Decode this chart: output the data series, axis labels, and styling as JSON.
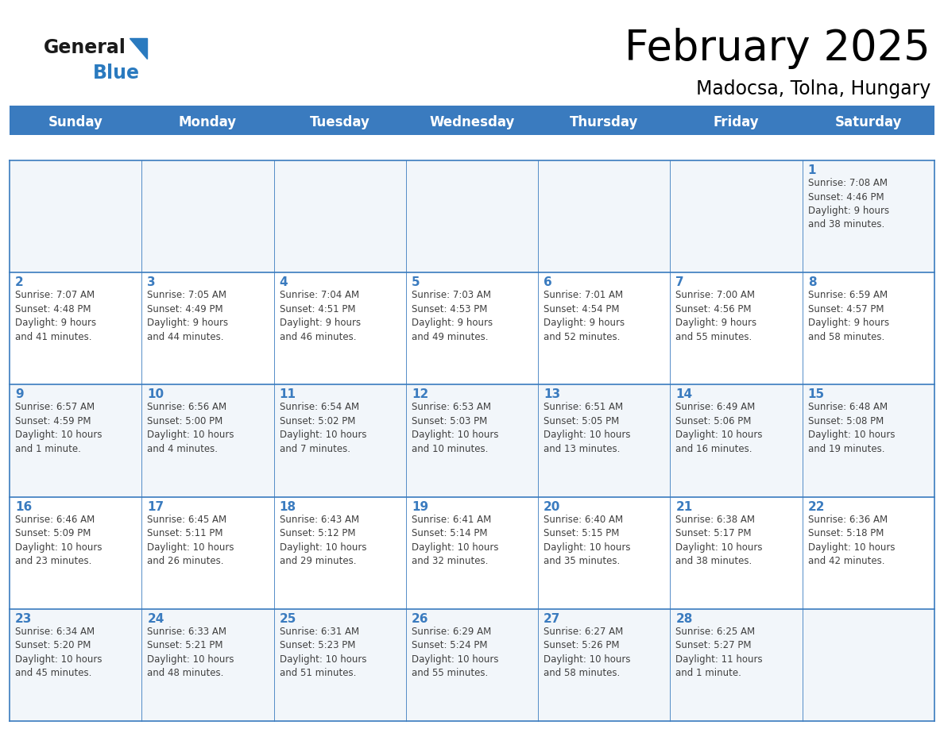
{
  "title": "February 2025",
  "subtitle": "Madocsa, Tolna, Hungary",
  "days_of_week": [
    "Sunday",
    "Monday",
    "Tuesday",
    "Wednesday",
    "Thursday",
    "Friday",
    "Saturday"
  ],
  "header_bg": "#3a7bbf",
  "header_text": "#ffffff",
  "line_color": "#3a7bbf",
  "day_number_color": "#3a7bbf",
  "text_color": "#404040",
  "logo_general_color": "#1a1a1a",
  "logo_blue_color": "#2a7abf",
  "bg_odd": "#f2f6fa",
  "bg_even": "#ffffff",
  "calendar": [
    [
      null,
      null,
      null,
      null,
      null,
      null,
      1
    ],
    [
      2,
      3,
      4,
      5,
      6,
      7,
      8
    ],
    [
      9,
      10,
      11,
      12,
      13,
      14,
      15
    ],
    [
      16,
      17,
      18,
      19,
      20,
      21,
      22
    ],
    [
      23,
      24,
      25,
      26,
      27,
      28,
      null
    ]
  ],
  "day_data": {
    "1": {
      "sunrise": "7:08 AM",
      "sunset": "4:46 PM",
      "daylight": "9 hours\nand 38 minutes."
    },
    "2": {
      "sunrise": "7:07 AM",
      "sunset": "4:48 PM",
      "daylight": "9 hours\nand 41 minutes."
    },
    "3": {
      "sunrise": "7:05 AM",
      "sunset": "4:49 PM",
      "daylight": "9 hours\nand 44 minutes."
    },
    "4": {
      "sunrise": "7:04 AM",
      "sunset": "4:51 PM",
      "daylight": "9 hours\nand 46 minutes."
    },
    "5": {
      "sunrise": "7:03 AM",
      "sunset": "4:53 PM",
      "daylight": "9 hours\nand 49 minutes."
    },
    "6": {
      "sunrise": "7:01 AM",
      "sunset": "4:54 PM",
      "daylight": "9 hours\nand 52 minutes."
    },
    "7": {
      "sunrise": "7:00 AM",
      "sunset": "4:56 PM",
      "daylight": "9 hours\nand 55 minutes."
    },
    "8": {
      "sunrise": "6:59 AM",
      "sunset": "4:57 PM",
      "daylight": "9 hours\nand 58 minutes."
    },
    "9": {
      "sunrise": "6:57 AM",
      "sunset": "4:59 PM",
      "daylight": "10 hours\nand 1 minute."
    },
    "10": {
      "sunrise": "6:56 AM",
      "sunset": "5:00 PM",
      "daylight": "10 hours\nand 4 minutes."
    },
    "11": {
      "sunrise": "6:54 AM",
      "sunset": "5:02 PM",
      "daylight": "10 hours\nand 7 minutes."
    },
    "12": {
      "sunrise": "6:53 AM",
      "sunset": "5:03 PM",
      "daylight": "10 hours\nand 10 minutes."
    },
    "13": {
      "sunrise": "6:51 AM",
      "sunset": "5:05 PM",
      "daylight": "10 hours\nand 13 minutes."
    },
    "14": {
      "sunrise": "6:49 AM",
      "sunset": "5:06 PM",
      "daylight": "10 hours\nand 16 minutes."
    },
    "15": {
      "sunrise": "6:48 AM",
      "sunset": "5:08 PM",
      "daylight": "10 hours\nand 19 minutes."
    },
    "16": {
      "sunrise": "6:46 AM",
      "sunset": "5:09 PM",
      "daylight": "10 hours\nand 23 minutes."
    },
    "17": {
      "sunrise": "6:45 AM",
      "sunset": "5:11 PM",
      "daylight": "10 hours\nand 26 minutes."
    },
    "18": {
      "sunrise": "6:43 AM",
      "sunset": "5:12 PM",
      "daylight": "10 hours\nand 29 minutes."
    },
    "19": {
      "sunrise": "6:41 AM",
      "sunset": "5:14 PM",
      "daylight": "10 hours\nand 32 minutes."
    },
    "20": {
      "sunrise": "6:40 AM",
      "sunset": "5:15 PM",
      "daylight": "10 hours\nand 35 minutes."
    },
    "21": {
      "sunrise": "6:38 AM",
      "sunset": "5:17 PM",
      "daylight": "10 hours\nand 38 minutes."
    },
    "22": {
      "sunrise": "6:36 AM",
      "sunset": "5:18 PM",
      "daylight": "10 hours\nand 42 minutes."
    },
    "23": {
      "sunrise": "6:34 AM",
      "sunset": "5:20 PM",
      "daylight": "10 hours\nand 45 minutes."
    },
    "24": {
      "sunrise": "6:33 AM",
      "sunset": "5:21 PM",
      "daylight": "10 hours\nand 48 minutes."
    },
    "25": {
      "sunrise": "6:31 AM",
      "sunset": "5:23 PM",
      "daylight": "10 hours\nand 51 minutes."
    },
    "26": {
      "sunrise": "6:29 AM",
      "sunset": "5:24 PM",
      "daylight": "10 hours\nand 55 minutes."
    },
    "27": {
      "sunrise": "6:27 AM",
      "sunset": "5:26 PM",
      "daylight": "10 hours\nand 58 minutes."
    },
    "28": {
      "sunrise": "6:25 AM",
      "sunset": "5:27 PM",
      "daylight": "11 hours\nand 1 minute."
    }
  }
}
